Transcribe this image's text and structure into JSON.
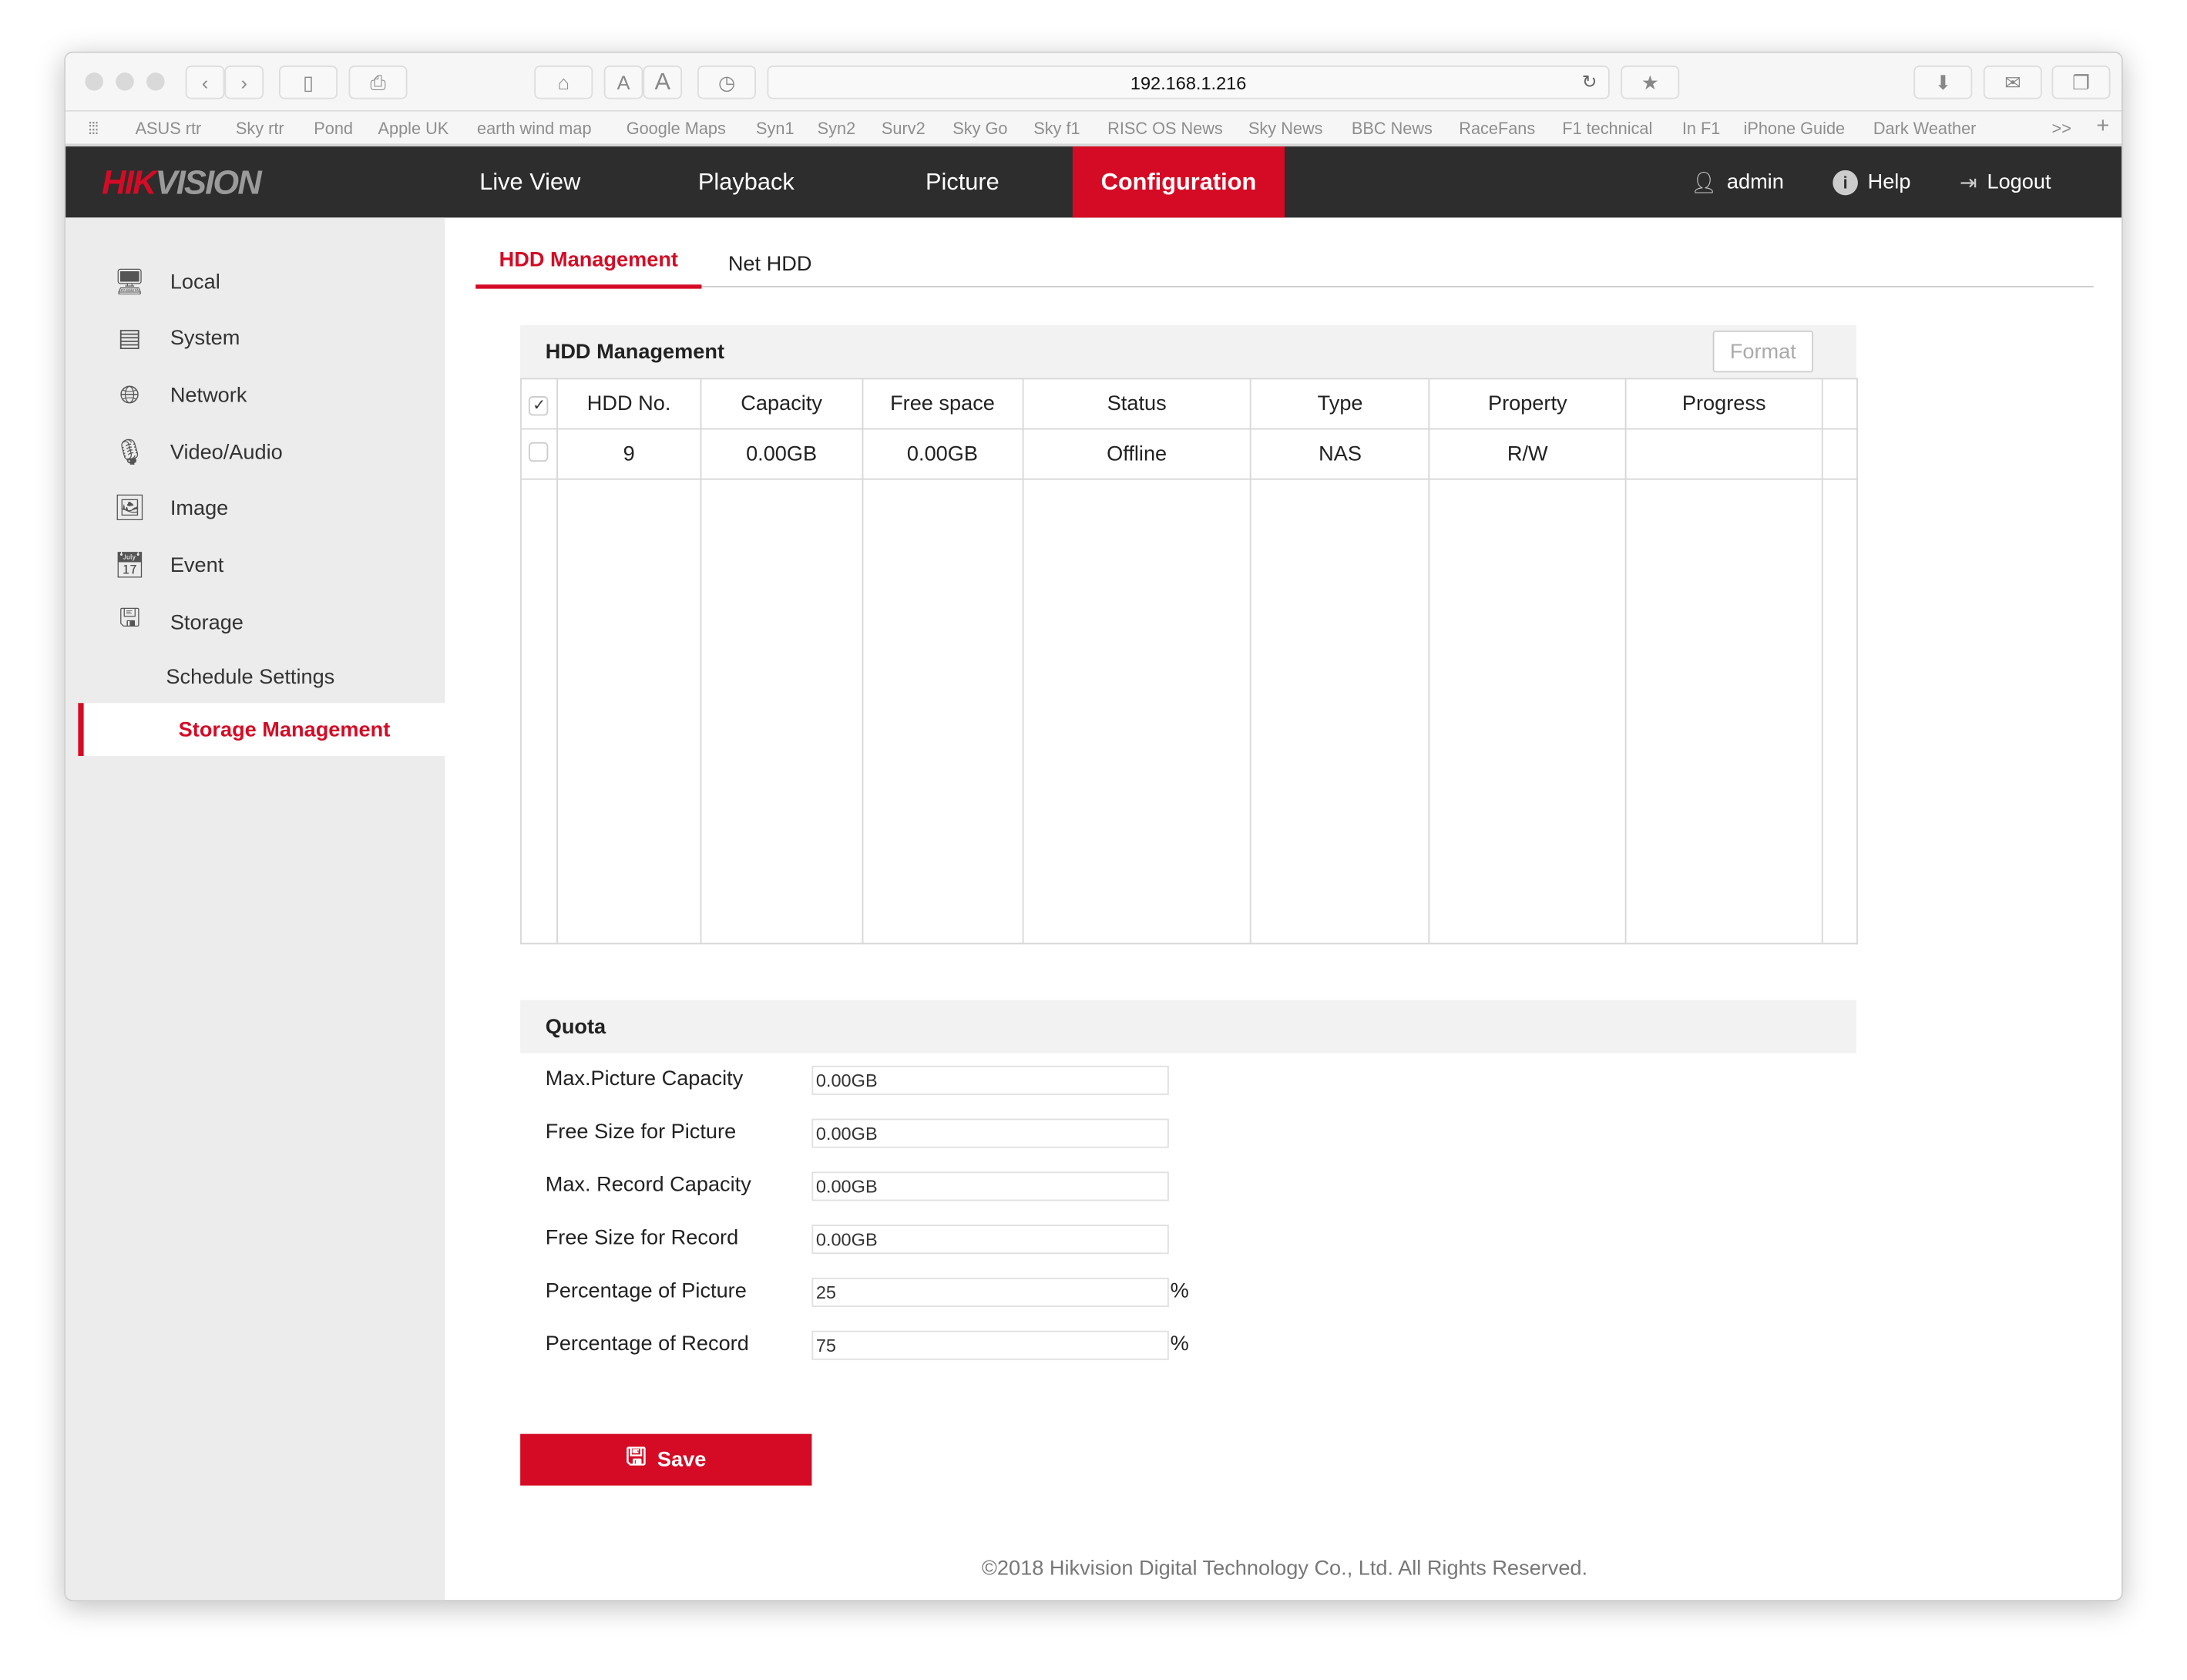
{
  "browser": {
    "url": "192.168.1.216",
    "font_small": "A",
    "font_large": "A",
    "bookmarks": [
      "ASUS  rtr",
      "Sky rtr",
      "Pond",
      "Apple UK",
      "earth wind map",
      "Google Maps",
      "Syn1",
      "Syn2",
      "Surv2",
      "Sky Go",
      "Sky f1",
      "RISC OS News",
      "Sky News",
      "BBC News",
      "RaceFans",
      "F1 technical",
      "In F1",
      "iPhone Guide",
      "Dark Weather"
    ],
    "more": ">>",
    "add": "+"
  },
  "header": {
    "logo": "HIKVISION",
    "logo_red": "HIK",
    "logo_gray": "VISION",
    "nav": [
      "Live View",
      "Playback",
      "Picture",
      "Configuration"
    ],
    "active_nav": "Configuration",
    "user": "admin",
    "help": "Help",
    "logout": "Logout",
    "accent": "#d50b25"
  },
  "sidebar": {
    "items": [
      {
        "label": "Local",
        "icon": "monitor-icon"
      },
      {
        "label": "System",
        "icon": "window-icon"
      },
      {
        "label": "Network",
        "icon": "globe-icon"
      },
      {
        "label": "Video/Audio",
        "icon": "microphone-icon"
      },
      {
        "label": "Image",
        "icon": "image-icon"
      },
      {
        "label": "Event",
        "icon": "calendar-icon"
      },
      {
        "label": "Storage",
        "icon": "floppy-icon"
      }
    ],
    "subitems": [
      "Schedule Settings",
      "Storage Management"
    ],
    "active": "Storage Management"
  },
  "tabs": [
    "HDD Management",
    "Net HDD"
  ],
  "hdd": {
    "title": "HDD Management",
    "format_label": "Format",
    "columns": [
      "HDD No.",
      "Capacity",
      "Free space",
      "Status",
      "Type",
      "Property",
      "Progress"
    ],
    "header_checked": true,
    "rows": [
      {
        "checked": false,
        "cells": [
          "9",
          "0.00GB",
          "0.00GB",
          "Offline",
          "NAS",
          "R/W",
          ""
        ]
      }
    ]
  },
  "quota": {
    "title": "Quota",
    "fields": [
      {
        "label": "Max.Picture Capacity",
        "value": "0.00GB"
      },
      {
        "label": "Free Size for Picture",
        "value": "0.00GB"
      },
      {
        "label": "Max. Record Capacity",
        "value": "0.00GB"
      },
      {
        "label": "Free Size for Record",
        "value": "0.00GB"
      },
      {
        "label": "Percentage of Picture",
        "value": "25",
        "unit": "%"
      },
      {
        "label": "Percentage of Record",
        "value": "75",
        "unit": "%"
      }
    ]
  },
  "save_label": "Save",
  "footer": "©2018 Hikvision Digital Technology Co., Ltd. All Rights Reserved."
}
